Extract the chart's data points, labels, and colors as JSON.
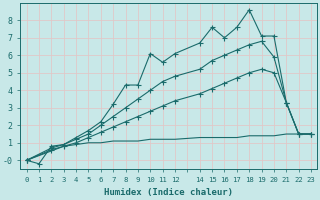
{
  "xlabel": "Humidex (Indice chaleur)",
  "background_color": "#c8e8e8",
  "grid_color": "#d8d0d0",
  "line_color": "#1a6b6b",
  "xlim": [
    -0.5,
    23.5
  ],
  "ylim": [
    -0.5,
    9.0
  ],
  "xtick_labels": [
    "0",
    "1",
    "2",
    "3",
    "4",
    "5",
    "6",
    "7",
    "8",
    "9",
    "10",
    "11",
    "12",
    "",
    "14",
    "15",
    "16",
    "17",
    "18",
    "19",
    "20",
    "21",
    "22",
    "23"
  ],
  "line1_x": [
    0,
    1,
    2,
    3,
    4,
    5,
    6,
    7,
    8,
    9,
    10,
    11,
    12,
    14,
    15,
    16,
    17,
    18,
    19,
    20,
    21,
    22,
    23
  ],
  "line1_y": [
    0.0,
    -0.2,
    0.8,
    0.9,
    1.3,
    1.7,
    2.2,
    3.2,
    4.3,
    4.3,
    6.1,
    5.6,
    6.1,
    6.7,
    7.6,
    7.0,
    7.6,
    8.6,
    7.1,
    7.1,
    3.3,
    1.5,
    1.5
  ],
  "line2_x": [
    0,
    2,
    3,
    4,
    5,
    6,
    7,
    8,
    9,
    10,
    11,
    12,
    14,
    15,
    16,
    17,
    18,
    19,
    20,
    21,
    22,
    23
  ],
  "line2_y": [
    0.0,
    0.7,
    0.9,
    1.2,
    1.5,
    2.0,
    2.5,
    3.0,
    3.5,
    4.0,
    4.5,
    4.8,
    5.2,
    5.7,
    6.0,
    6.3,
    6.6,
    6.8,
    5.9,
    3.3,
    1.5,
    1.5
  ],
  "line3_x": [
    0,
    2,
    3,
    4,
    5,
    6,
    7,
    8,
    9,
    10,
    11,
    12,
    14,
    15,
    16,
    17,
    18,
    19,
    20,
    21,
    22,
    23
  ],
  "line3_y": [
    0.0,
    0.6,
    0.8,
    1.0,
    1.3,
    1.6,
    1.9,
    2.2,
    2.5,
    2.8,
    3.1,
    3.4,
    3.8,
    4.1,
    4.4,
    4.7,
    5.0,
    5.2,
    5.0,
    3.3,
    1.5,
    1.5
  ],
  "line4_x": [
    0,
    3,
    4,
    5,
    6,
    7,
    8,
    9,
    10,
    11,
    12,
    14,
    15,
    16,
    17,
    18,
    19,
    20,
    21,
    22,
    23
  ],
  "line4_y": [
    0.0,
    0.8,
    0.9,
    1.0,
    1.0,
    1.1,
    1.1,
    1.1,
    1.2,
    1.2,
    1.2,
    1.3,
    1.3,
    1.3,
    1.3,
    1.4,
    1.4,
    1.4,
    1.5,
    1.5,
    1.5
  ]
}
